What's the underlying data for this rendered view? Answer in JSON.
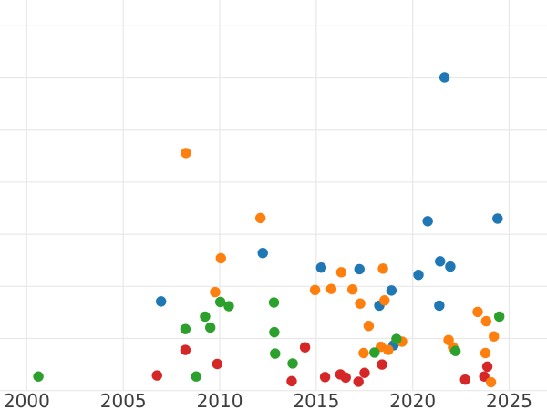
{
  "figure": {
    "background_color": "#ffffff",
    "gridline_color": "#e8e8e8",
    "tick_label_color": "#3d3d3d"
  },
  "chart_data": {
    "type": "scatter",
    "title": "",
    "xlabel": "",
    "ylabel": "",
    "grid": true,
    "legend_position": "none",
    "x_ticks": [
      2000,
      2005,
      2010,
      2015,
      2020,
      2025
    ],
    "x_tick_labels": [
      "2000",
      "2005",
      "2010",
      "2015",
      "2020",
      "2025"
    ],
    "y_gridline_values": [
      0,
      1,
      2,
      3,
      4,
      5,
      6,
      7
    ],
    "y_tick_labels_visible": false,
    "xlim": [
      1998.611,
      2026.962
    ],
    "ylim": [
      -0.373,
      7.496
    ],
    "marker_radius_px": 5.7,
    "series": [
      {
        "name": "red",
        "color": "#d62728",
        "points": [
          [
            2006.75,
            0.29
          ],
          [
            2008.22,
            0.78
          ],
          [
            2009.87,
            0.51
          ],
          [
            2013.73,
            0.18
          ],
          [
            2014.42,
            0.83
          ],
          [
            2015.46,
            0.26
          ],
          [
            2016.25,
            0.31
          ],
          [
            2016.53,
            0.25
          ],
          [
            2017.19,
            0.17
          ],
          [
            2017.51,
            0.34
          ],
          [
            2018.41,
            0.5
          ],
          [
            2022.72,
            0.21
          ],
          [
            2023.71,
            0.27
          ],
          [
            2023.87,
            0.46
          ]
        ]
      },
      {
        "name": "blue",
        "color": "#1f77b4",
        "points": [
          [
            2021.65,
            6.01
          ],
          [
            2020.78,
            3.25
          ],
          [
            2024.4,
            3.3
          ],
          [
            2021.42,
            2.48
          ],
          [
            2021.95,
            2.38
          ],
          [
            2020.3,
            2.22
          ],
          [
            2015.26,
            2.36
          ],
          [
            2017.24,
            2.33
          ],
          [
            2018.9,
            1.92
          ],
          [
            2018.27,
            1.63
          ],
          [
            2012.23,
            2.64
          ],
          [
            2006.96,
            1.71
          ],
          [
            2019.01,
            0.87
          ],
          [
            2021.38,
            1.63
          ]
        ]
      },
      {
        "name": "orange",
        "color": "#ff7f0e",
        "points": [
          [
            2008.25,
            4.56
          ],
          [
            2012.11,
            3.31
          ],
          [
            2010.06,
            2.54
          ],
          [
            2009.76,
            1.89
          ],
          [
            2014.94,
            1.93
          ],
          [
            2015.78,
            1.95
          ],
          [
            2016.88,
            1.94
          ],
          [
            2016.3,
            2.27
          ],
          [
            2018.46,
            2.34
          ],
          [
            2017.28,
            1.67
          ],
          [
            2018.54,
            1.73
          ],
          [
            2017.72,
            1.24
          ],
          [
            2017.46,
            0.72
          ],
          [
            2018.35,
            0.84
          ],
          [
            2018.73,
            0.78
          ],
          [
            2019.45,
            0.94
          ],
          [
            2023.37,
            1.51
          ],
          [
            2023.81,
            1.33
          ],
          [
            2024.21,
            1.04
          ],
          [
            2021.86,
            0.97
          ],
          [
            2022.09,
            0.83
          ],
          [
            2023.77,
            0.72
          ],
          [
            2024.06,
            0.16
          ]
        ]
      },
      {
        "name": "green",
        "color": "#2ca02c",
        "points": [
          [
            2000.6,
            0.27
          ],
          [
            2008.78,
            0.27
          ],
          [
            2008.22,
            1.18
          ],
          [
            2009.24,
            1.42
          ],
          [
            2009.51,
            1.21
          ],
          [
            2010.03,
            1.7
          ],
          [
            2010.47,
            1.62
          ],
          [
            2012.81,
            1.69
          ],
          [
            2012.83,
            1.12
          ],
          [
            2012.87,
            0.71
          ],
          [
            2013.78,
            0.52
          ],
          [
            2018.02,
            0.73
          ],
          [
            2019.16,
            0.99
          ],
          [
            2022.22,
            0.76
          ],
          [
            2024.49,
            1.42
          ]
        ]
      }
    ]
  }
}
